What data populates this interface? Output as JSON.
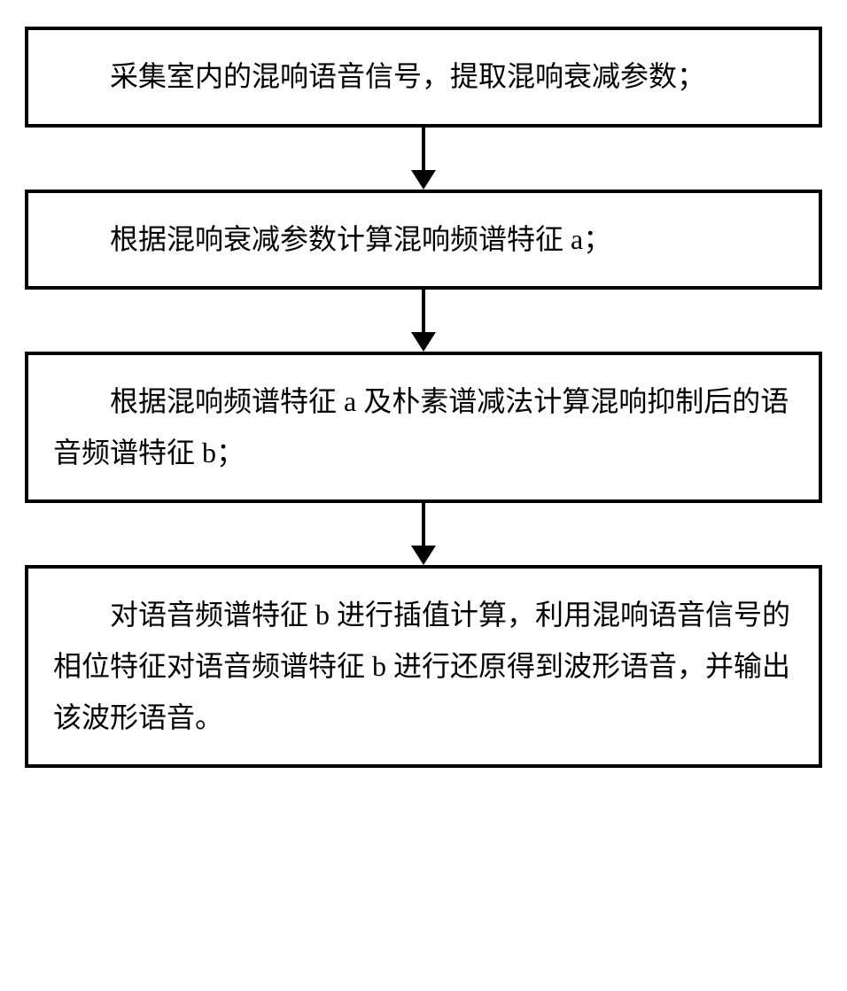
{
  "flowchart": {
    "type": "flowchart",
    "direction": "vertical",
    "border_color": "#000000",
    "border_width": 4,
    "background_color": "#ffffff",
    "text_color": "#000000",
    "font_size": 32,
    "font_family": "SimSun",
    "arrow_color": "#000000",
    "arrow_line_width": 4,
    "arrow_head_width": 28,
    "arrow_head_height": 22,
    "steps": [
      {
        "id": "step1",
        "text": "采集室内的混响语音信号，提取混响衰减参数；"
      },
      {
        "id": "step2",
        "text": "根据混响衰减参数计算混响频谱特征 a；"
      },
      {
        "id": "step3",
        "text": "根据混响频谱特征 a 及朴素谱减法计算混响抑制后的语音频谱特征 b；"
      },
      {
        "id": "step4",
        "text": "对语音频谱特征 b 进行插值计算，利用混响语音信号的相位特征对语音频谱特征 b 进行还原得到波形语音，并输出该波形语音。"
      }
    ]
  }
}
